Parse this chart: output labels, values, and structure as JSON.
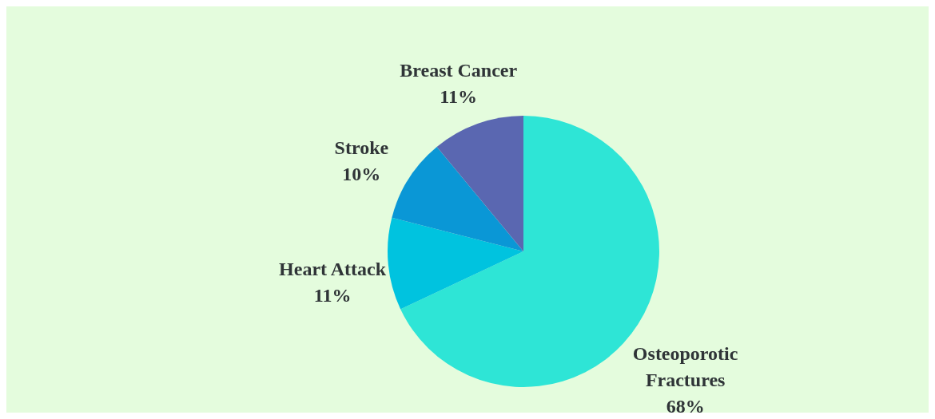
{
  "chart_data": {
    "type": "pie",
    "categories": [
      "Osteoporotic Fractures",
      "Heart Attack",
      "Stroke",
      "Breast Cancer"
    ],
    "values": [
      68,
      11,
      10,
      11
    ],
    "value_labels": [
      "68%",
      "11%",
      "10%",
      "11%"
    ],
    "colors": [
      "#2ee5d6",
      "#00c3df",
      "#0a97d6",
      "#5a67b1"
    ]
  }
}
